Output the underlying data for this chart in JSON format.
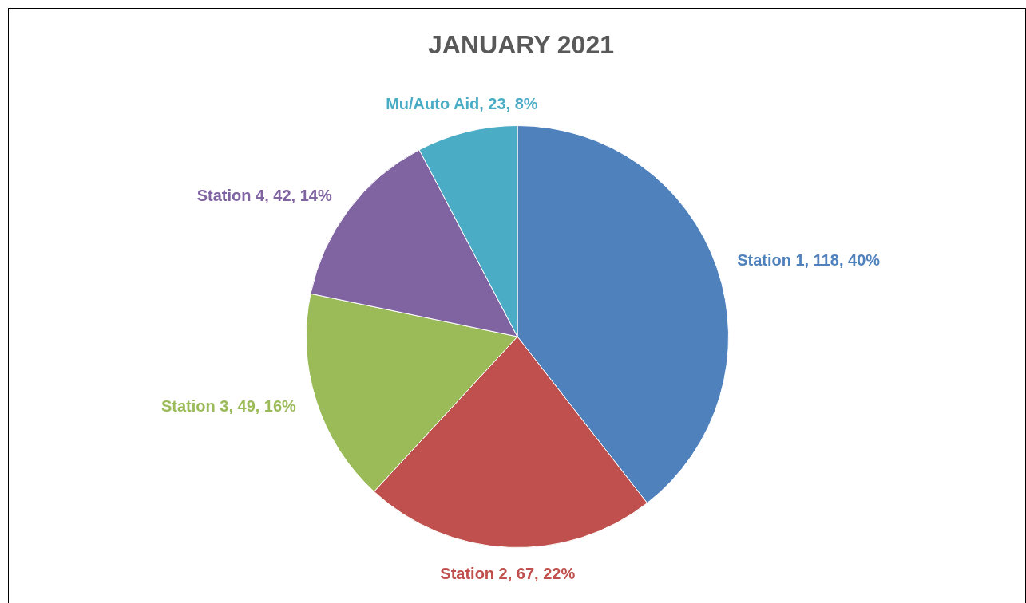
{
  "chart_data": {
    "type": "pie",
    "title": "JANUARY 2021",
    "categories": [
      "Station 1",
      "Station 2",
      "Station 3",
      "Station 4",
      "Mu/Auto Aid"
    ],
    "values": [
      118,
      67,
      49,
      42,
      23
    ],
    "value_labels": [
      "118, 40%",
      "67, 22%",
      "49, 16%",
      "42, 14%",
      "23, 8%"
    ],
    "colors": [
      "#4f81bd",
      "#c0504d",
      "#9bbb59",
      "#8064a2",
      "#4bacc6"
    ],
    "legend": false
  }
}
